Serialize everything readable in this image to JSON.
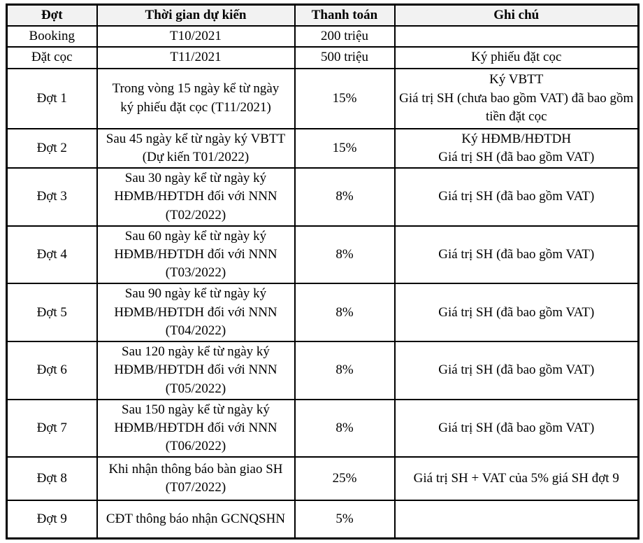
{
  "table": {
    "title": "payment-schedule",
    "headers": {
      "dot": "Đợt",
      "time": "Thời gian dự kiến",
      "payment": "Thanh toán",
      "note": "Ghi chú"
    },
    "rows": [
      {
        "dot": "Booking",
        "time": "T10/2021",
        "payment": "200 triệu",
        "note": ""
      },
      {
        "dot": "Đặt cọc",
        "time": "T11/2021",
        "payment": "500 triệu",
        "note": "Ký phiếu đặt cọc"
      },
      {
        "dot": "Đợt 1",
        "time": "Trong vòng 15 ngày kể từ ngày\nký phiếu đặt cọc (T11/2021)",
        "payment": "15%",
        "note": "Ký VBTT\nGiá trị SH (chưa bao gồm VAT) đã bao gồm tiền đặt cọc"
      },
      {
        "dot": "Đợt 2",
        "time": "Sau 45 ngày kể từ ngày ký VBTT\n(Dự kiến T01/2022)",
        "payment": "15%",
        "note": "Ký HĐMB/HĐTDH\nGiá trị SH (đã bao gồm VAT)"
      },
      {
        "dot": "Đợt 3",
        "time": "Sau 30 ngày kể từ ngày ký\nHĐMB/HĐTDH đối với NNN\n(T02/2022)",
        "payment": "8%",
        "note": "Giá trị SH (đã bao gồm VAT)"
      },
      {
        "dot": "Đợt 4",
        "time": "Sau 60 ngày kể từ ngày ký\nHĐMB/HĐTDH đối với NNN\n(T03/2022)",
        "payment": "8%",
        "note": "Giá trị SH (đã bao gồm VAT)"
      },
      {
        "dot": "Đợt 5",
        "time": "Sau 90 ngày kể từ ngày ký\nHĐMB/HĐTDH đối với NNN\n(T04/2022)",
        "payment": "8%",
        "note": "Giá trị SH (đã bao gồm VAT)"
      },
      {
        "dot": "Đợt 6",
        "time": "Sau 120 ngày kể từ ngày ký\nHĐMB/HĐTDH đối với NNN\n(T05/2022)",
        "payment": "8%",
        "note": "Giá trị SH (đã bao gồm VAT)"
      },
      {
        "dot": "Đợt 7",
        "time": "Sau 150 ngày kể từ ngày ký\nHĐMB/HĐTDH đối với NNN\n(T06/2022)",
        "payment": "8%",
        "note": "Giá trị SH (đã bao gồm VAT)"
      },
      {
        "dot": "Đợt 8",
        "time": "Khi nhận thông báo bàn giao SH\n(T07/2022)",
        "payment": "25%",
        "note": "Giá trị SH + VAT của 5% giá SH đợt 9"
      },
      {
        "dot": "Đợt 9",
        "time": "CĐT thông báo nhận GCNQSHN",
        "payment": "5%",
        "note": ""
      }
    ],
    "colors": {
      "border": "#000000",
      "header_background": "#f2f2f2",
      "text": "#000000",
      "body_background": "#ffffff"
    }
  }
}
